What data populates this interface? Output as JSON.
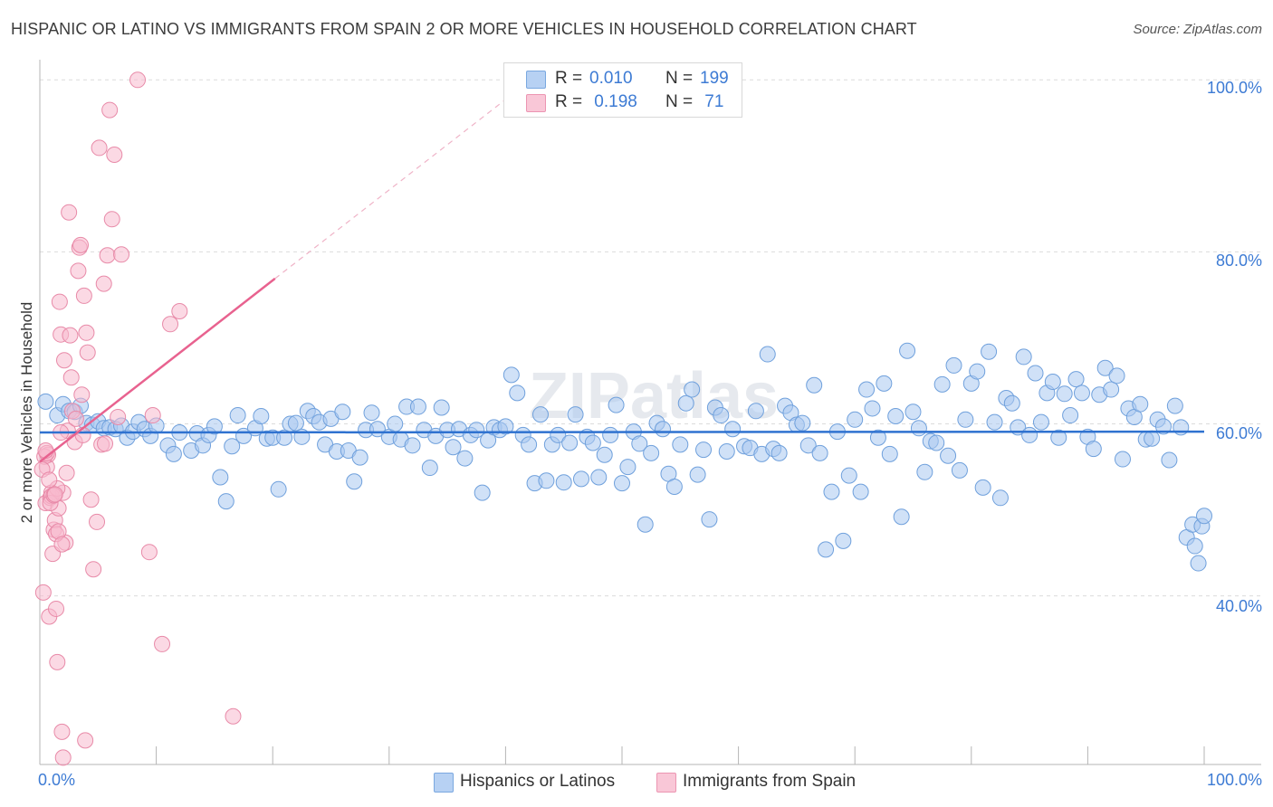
{
  "title": "HISPANIC OR LATINO VS IMMIGRANTS FROM SPAIN 2 OR MORE VEHICLES IN HOUSEHOLD CORRELATION CHART",
  "source": "Source: ZipAtlas.com",
  "watermark": "ZIPatlas",
  "legend_top": {
    "rows": [
      {
        "r_label": "R = ",
        "r_value": "0.010",
        "n_label": "N = ",
        "n_value": "199",
        "color": "#a9c8f0"
      },
      {
        "r_label": "R = ",
        "r_value": " 0.198",
        "n_label": "N = ",
        "n_value": " 71",
        "color": "#f7b9cd"
      }
    ]
  },
  "chart_data": {
    "type": "scatter",
    "xlabel": "",
    "ylabel": "2 or more Vehicles in Household",
    "x_tick_labels": [
      "0.0%",
      "100.0%"
    ],
    "y_tick_labels": [
      "40.0%",
      "60.0%",
      "80.0%",
      "100.0%"
    ],
    "xlim": [
      0,
      100
    ],
    "ylim": [
      20.4,
      101.4
    ],
    "grid": true,
    "series": [
      {
        "name": "Hispanics or Latinos",
        "color": "#a9c8f0",
        "edge": "#6fa0dc",
        "trend": {
          "x0": 0,
          "y0": 59.0,
          "x1": 100,
          "y1": 59.1,
          "color": "#2f72d0"
        },
        "points": [
          [
            0.5,
            62.6
          ],
          [
            1.5,
            61.0
          ],
          [
            2.0,
            62.3
          ],
          [
            2.5,
            61.5
          ],
          [
            3.0,
            61.4
          ],
          [
            3.5,
            62.1
          ],
          [
            4.0,
            60.1
          ],
          [
            4.5,
            59.9
          ],
          [
            5.0,
            60.3
          ],
          [
            5.5,
            59.5
          ],
          [
            6.0,
            59.6
          ],
          [
            6.5,
            59.4
          ],
          [
            7.0,
            59.8
          ],
          [
            7.5,
            58.4
          ],
          [
            8.0,
            59.1
          ],
          [
            8.5,
            60.2
          ],
          [
            9.0,
            59.4
          ],
          [
            9.5,
            58.6
          ],
          [
            10.0,
            59.8
          ],
          [
            11.0,
            57.5
          ],
          [
            11.5,
            56.5
          ],
          [
            12.0,
            59.0
          ],
          [
            13.0,
            56.9
          ],
          [
            13.5,
            58.9
          ],
          [
            14.0,
            57.5
          ],
          [
            14.5,
            58.7
          ],
          [
            15.0,
            59.7
          ],
          [
            15.5,
            53.8
          ],
          [
            16.0,
            51.0
          ],
          [
            16.5,
            57.4
          ],
          [
            17.0,
            61.0
          ],
          [
            17.5,
            58.6
          ],
          [
            18.5,
            59.5
          ],
          [
            19.0,
            60.9
          ],
          [
            19.5,
            58.3
          ],
          [
            20.0,
            58.4
          ],
          [
            20.5,
            52.4
          ],
          [
            21.0,
            58.4
          ],
          [
            21.5,
            60.0
          ],
          [
            22.0,
            60.1
          ],
          [
            22.5,
            58.5
          ],
          [
            23.0,
            61.5
          ],
          [
            23.5,
            60.9
          ],
          [
            24.0,
            60.2
          ],
          [
            24.5,
            57.6
          ],
          [
            25.0,
            60.6
          ],
          [
            25.5,
            56.8
          ],
          [
            26.0,
            61.4
          ],
          [
            26.5,
            56.9
          ],
          [
            27.0,
            53.3
          ],
          [
            27.5,
            56.1
          ],
          [
            28.0,
            59.3
          ],
          [
            28.5,
            61.3
          ],
          [
            29.0,
            59.4
          ],
          [
            30.0,
            58.5
          ],
          [
            30.5,
            60.0
          ],
          [
            31.0,
            58.2
          ],
          [
            31.5,
            62.0
          ],
          [
            32.0,
            57.5
          ],
          [
            32.5,
            62.0
          ],
          [
            33.0,
            59.3
          ],
          [
            33.5,
            54.9
          ],
          [
            34.0,
            58.6
          ],
          [
            34.5,
            61.9
          ],
          [
            35.0,
            59.3
          ],
          [
            35.5,
            57.3
          ],
          [
            36.0,
            59.4
          ],
          [
            36.5,
            56.0
          ],
          [
            37.0,
            58.7
          ],
          [
            37.5,
            59.3
          ],
          [
            38.0,
            52.0
          ],
          [
            38.5,
            58.1
          ],
          [
            39.0,
            59.6
          ],
          [
            39.5,
            59.3
          ],
          [
            40.0,
            59.7
          ],
          [
            40.5,
            65.7
          ],
          [
            41.0,
            63.6
          ],
          [
            41.5,
            58.7
          ],
          [
            42.0,
            57.6
          ],
          [
            42.5,
            53.1
          ],
          [
            43.0,
            61.1
          ],
          [
            43.5,
            53.4
          ],
          [
            44.0,
            57.6
          ],
          [
            44.5,
            58.7
          ],
          [
            45.0,
            53.2
          ],
          [
            45.5,
            57.8
          ],
          [
            46.0,
            61.1
          ],
          [
            46.5,
            53.6
          ],
          [
            47.0,
            58.5
          ],
          [
            47.5,
            57.8
          ],
          [
            48.0,
            53.8
          ],
          [
            48.5,
            56.4
          ],
          [
            49.0,
            58.7
          ],
          [
            49.5,
            62.2
          ],
          [
            50.0,
            53.1
          ],
          [
            50.5,
            55.0
          ],
          [
            51.0,
            59.1
          ],
          [
            51.5,
            57.7
          ],
          [
            52.0,
            48.3
          ],
          [
            52.5,
            56.6
          ],
          [
            53.0,
            60.1
          ],
          [
            53.5,
            59.4
          ],
          [
            54.0,
            54.2
          ],
          [
            54.5,
            52.7
          ],
          [
            55.0,
            57.6
          ],
          [
            55.5,
            62.4
          ],
          [
            56.0,
            64.0
          ],
          [
            56.5,
            54.1
          ],
          [
            57.0,
            57.0
          ],
          [
            57.5,
            48.9
          ],
          [
            58.0,
            61.9
          ],
          [
            58.5,
            61.0
          ],
          [
            59.0,
            56.8
          ],
          [
            59.5,
            59.4
          ],
          [
            60.5,
            57.4
          ],
          [
            61.0,
            57.2
          ],
          [
            61.5,
            61.5
          ],
          [
            62.0,
            56.5
          ],
          [
            62.5,
            68.1
          ],
          [
            63.0,
            57.1
          ],
          [
            63.5,
            56.6
          ],
          [
            64.0,
            62.1
          ],
          [
            64.5,
            61.3
          ],
          [
            65.0,
            59.9
          ],
          [
            65.5,
            60.1
          ],
          [
            66.0,
            57.5
          ],
          [
            66.5,
            64.5
          ],
          [
            67.0,
            56.6
          ],
          [
            67.5,
            45.4
          ],
          [
            68.0,
            52.1
          ],
          [
            68.5,
            59.1
          ],
          [
            69.0,
            46.4
          ],
          [
            69.5,
            54.0
          ],
          [
            70.0,
            60.5
          ],
          [
            70.5,
            52.1
          ],
          [
            71.0,
            64.0
          ],
          [
            71.5,
            61.8
          ],
          [
            72.0,
            58.4
          ],
          [
            72.5,
            64.7
          ],
          [
            73.0,
            56.5
          ],
          [
            73.5,
            60.9
          ],
          [
            74.0,
            49.2
          ],
          [
            74.5,
            68.5
          ],
          [
            75.0,
            61.4
          ],
          [
            75.5,
            59.5
          ],
          [
            76.0,
            54.4
          ],
          [
            76.5,
            58.0
          ],
          [
            77.0,
            57.8
          ],
          [
            77.5,
            64.6
          ],
          [
            78.0,
            56.3
          ],
          [
            78.5,
            66.8
          ],
          [
            79.0,
            54.6
          ],
          [
            79.5,
            60.5
          ],
          [
            80.0,
            64.7
          ],
          [
            80.5,
            66.1
          ],
          [
            81.0,
            52.6
          ],
          [
            81.5,
            68.4
          ],
          [
            82.0,
            60.2
          ],
          [
            82.5,
            51.4
          ],
          [
            83.0,
            63.0
          ],
          [
            83.5,
            62.4
          ],
          [
            84.0,
            59.6
          ],
          [
            84.5,
            67.8
          ],
          [
            85.0,
            58.7
          ],
          [
            85.5,
            65.9
          ],
          [
            86.0,
            60.2
          ],
          [
            86.5,
            63.6
          ],
          [
            87.0,
            64.9
          ],
          [
            87.5,
            58.4
          ],
          [
            88.0,
            63.5
          ],
          [
            88.5,
            61.0
          ],
          [
            89.0,
            65.2
          ],
          [
            89.5,
            63.6
          ],
          [
            90.0,
            58.5
          ],
          [
            90.5,
            57.1
          ],
          [
            91.0,
            63.4
          ],
          [
            91.5,
            66.5
          ],
          [
            92.0,
            64.0
          ],
          [
            92.5,
            65.6
          ],
          [
            93.0,
            55.9
          ],
          [
            93.5,
            61.8
          ],
          [
            94.0,
            60.8
          ],
          [
            94.5,
            62.3
          ],
          [
            95.0,
            58.2
          ],
          [
            95.5,
            58.3
          ],
          [
            96.0,
            60.5
          ],
          [
            96.5,
            59.7
          ],
          [
            97.0,
            55.8
          ],
          [
            97.5,
            62.1
          ],
          [
            98.0,
            59.6
          ],
          [
            98.5,
            46.8
          ],
          [
            99.0,
            48.3
          ],
          [
            99.2,
            45.8
          ],
          [
            99.5,
            43.8
          ],
          [
            99.8,
            48.1
          ],
          [
            100.0,
            49.3
          ]
        ]
      },
      {
        "name": "Immigrants from Spain",
        "color": "#f7b9cd",
        "edge": "#e88aa8",
        "trend": {
          "x0": 0,
          "y0": 55.6,
          "x1": 20.2,
          "y1": 76.9,
          "color": "#e8628f",
          "dash_to": {
            "x": 41.5,
            "y": 99.3
          }
        },
        "points": [
          [
            0.3,
            40.4
          ],
          [
            0.5,
            50.8
          ],
          [
            0.6,
            55.0
          ],
          [
            0.7,
            56.4
          ],
          [
            0.8,
            37.6
          ],
          [
            0.9,
            51.4
          ],
          [
            1.0,
            52.0
          ],
          [
            1.1,
            44.9
          ],
          [
            1.2,
            47.7
          ],
          [
            1.3,
            48.8
          ],
          [
            1.4,
            38.5
          ],
          [
            1.5,
            32.3
          ],
          [
            1.6,
            50.2
          ],
          [
            1.7,
            74.2
          ],
          [
            1.8,
            70.4
          ],
          [
            1.9,
            24.2
          ],
          [
            2.0,
            52.0
          ],
          [
            2.1,
            67.4
          ],
          [
            2.2,
            46.2
          ],
          [
            2.3,
            54.3
          ],
          [
            2.4,
            59.2
          ],
          [
            2.5,
            84.6
          ],
          [
            2.6,
            70.3
          ],
          [
            2.7,
            65.4
          ],
          [
            2.8,
            61.5
          ],
          [
            3.0,
            57.9
          ],
          [
            3.1,
            60.6
          ],
          [
            3.3,
            77.8
          ],
          [
            3.4,
            80.5
          ],
          [
            3.5,
            80.8
          ],
          [
            3.6,
            63.4
          ],
          [
            3.7,
            58.7
          ],
          [
            3.8,
            74.9
          ],
          [
            3.9,
            23.2
          ],
          [
            4.0,
            70.6
          ],
          [
            4.1,
            68.3
          ],
          [
            4.4,
            51.2
          ],
          [
            4.6,
            43.1
          ],
          [
            4.9,
            48.6
          ],
          [
            5.1,
            92.1
          ],
          [
            5.3,
            57.6
          ],
          [
            5.5,
            76.3
          ],
          [
            5.6,
            57.7
          ],
          [
            5.8,
            79.6
          ],
          [
            6.0,
            96.5
          ],
          [
            6.2,
            83.8
          ],
          [
            6.4,
            91.3
          ],
          [
            6.7,
            60.8
          ],
          [
            7.0,
            79.7
          ],
          [
            8.4,
            100.0
          ],
          [
            9.4,
            45.1
          ],
          [
            9.7,
            61.0
          ],
          [
            10.5,
            34.4
          ],
          [
            11.2,
            71.6
          ],
          [
            12.0,
            73.1
          ],
          [
            16.6,
            26.0
          ],
          [
            0.4,
            56.2
          ],
          [
            0.6,
            56.6
          ],
          [
            1.0,
            51.6
          ],
          [
            0.2,
            54.7
          ],
          [
            1.4,
            47.2
          ],
          [
            1.5,
            52.5
          ],
          [
            0.9,
            50.8
          ],
          [
            1.2,
            51.7
          ],
          [
            1.6,
            47.5
          ],
          [
            2.0,
            21.2
          ],
          [
            0.8,
            53.5
          ],
          [
            1.3,
            51.8
          ],
          [
            1.9,
            46.0
          ],
          [
            0.5,
            56.9
          ],
          [
            1.8,
            59.0
          ]
        ]
      }
    ]
  },
  "legend_bottom": [
    {
      "label": "Hispanics or Latinos",
      "color": "#a9c8f0"
    },
    {
      "label": "Immigrants from Spain",
      "color": "#f7b9cd"
    }
  ]
}
